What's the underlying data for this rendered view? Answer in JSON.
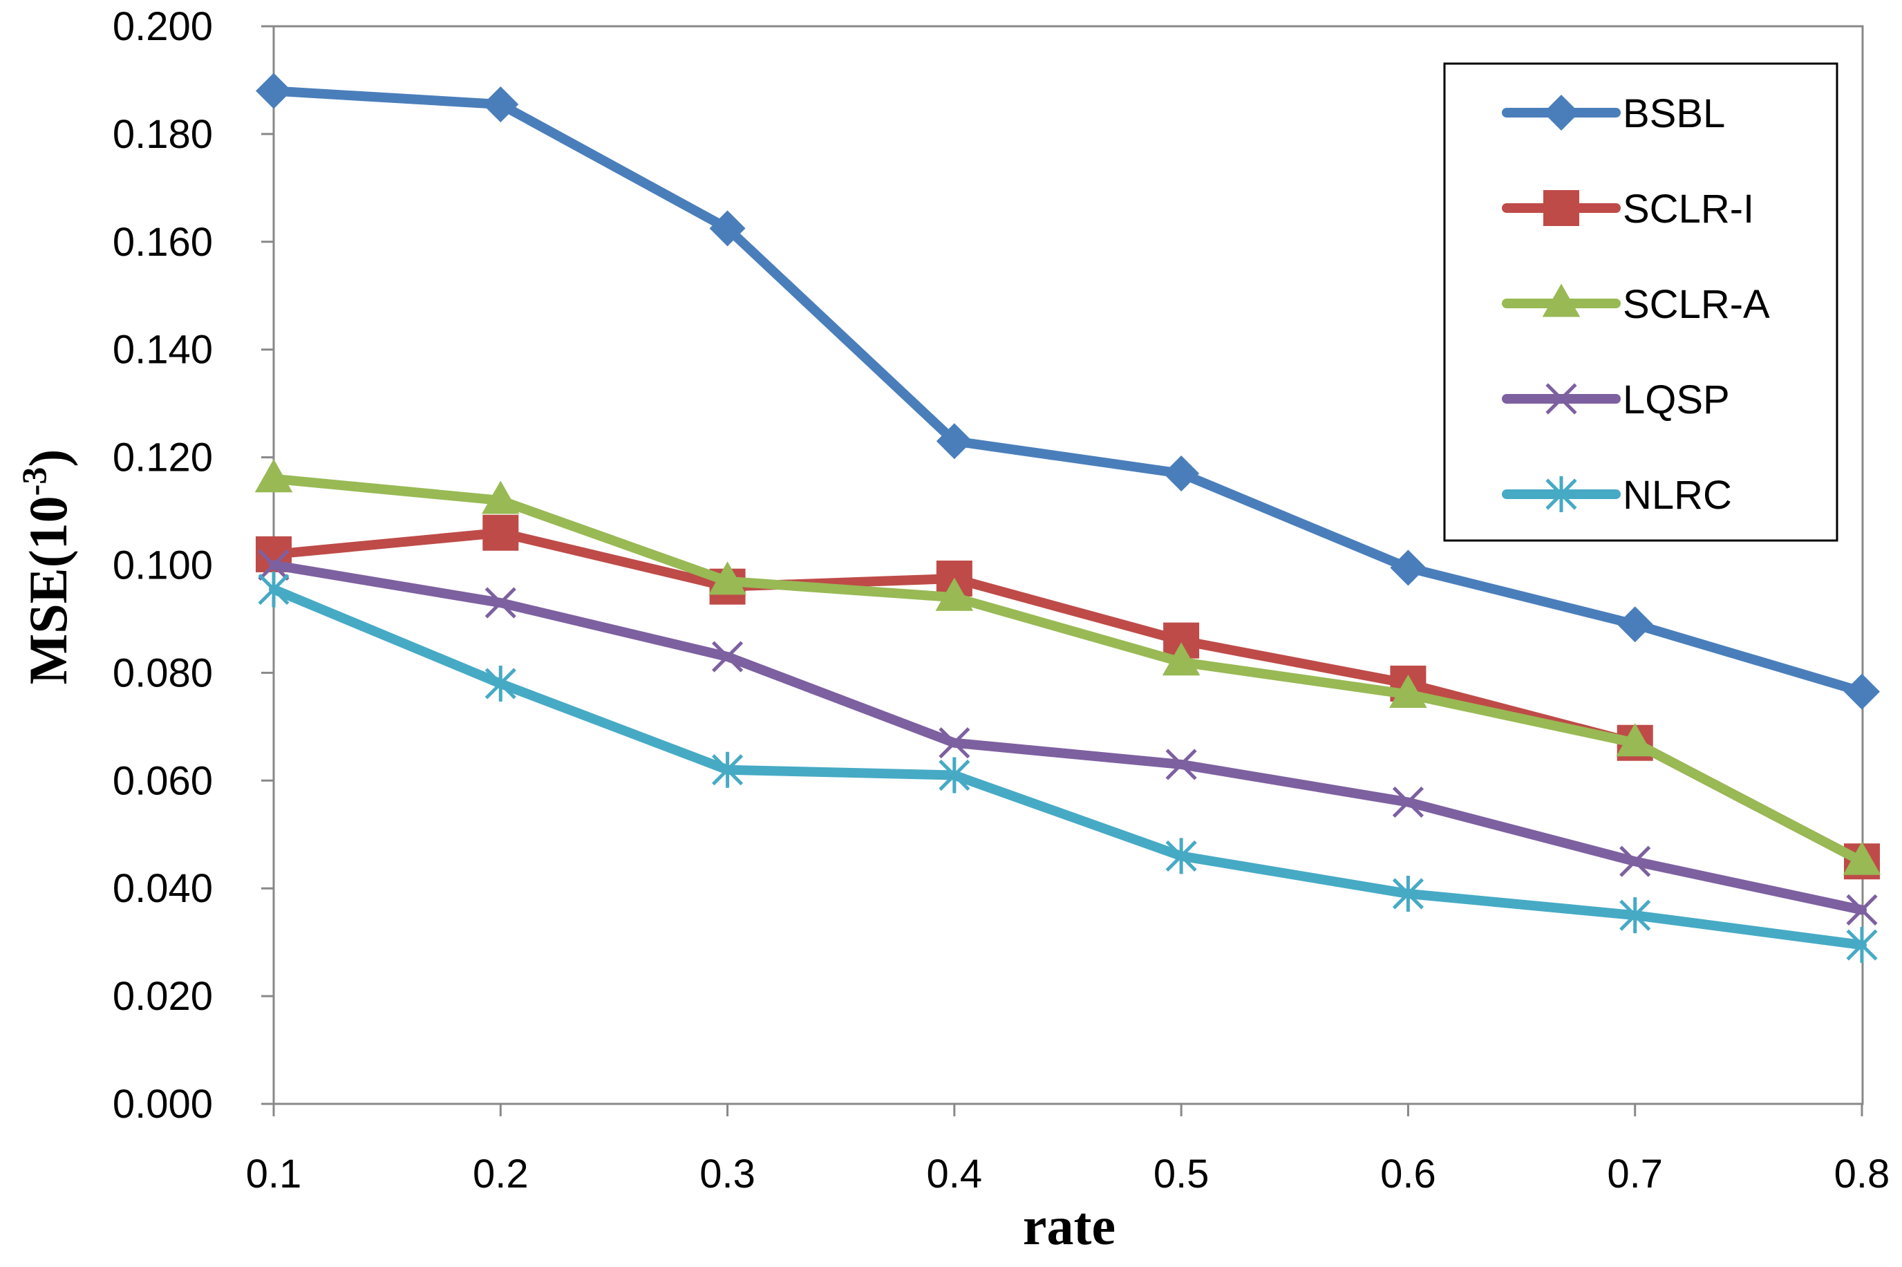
{
  "chart_data": {
    "type": "line",
    "title": "",
    "xlabel": "rate",
    "ylabel": "MSE(10",
    "ylabel_superscript": "-3",
    "ylabel_close": ")",
    "categories": [
      "0.1",
      "0.2",
      "0.3",
      "0.4",
      "0.5",
      "0.6",
      "0.7",
      "0.8"
    ],
    "ylim": [
      0,
      0.2
    ],
    "yticks": [
      "0.000",
      "0.020",
      "0.040",
      "0.060",
      "0.080",
      "0.100",
      "0.120",
      "0.140",
      "0.160",
      "0.180",
      "0.200"
    ],
    "grid": false,
    "legend_position": "top-right",
    "series": [
      {
        "name": "BSBL",
        "color": "#4A7EBB",
        "marker": "diamond",
        "values": [
          0.188,
          0.1855,
          0.1625,
          0.123,
          0.117,
          0.0995,
          0.089,
          0.0765
        ]
      },
      {
        "name": "SCLR-I",
        "color": "#BE4B48",
        "marker": "square",
        "values": [
          0.102,
          0.106,
          0.096,
          0.0975,
          0.086,
          0.078,
          0.067,
          0.045
        ]
      },
      {
        "name": "SCLR-A",
        "color": "#98B954",
        "marker": "triangle",
        "values": [
          0.116,
          0.112,
          0.097,
          0.094,
          0.082,
          0.076,
          0.067,
          0.045
        ]
      },
      {
        "name": "LQSP",
        "color": "#7D60A0",
        "marker": "x",
        "values": [
          0.1,
          0.093,
          0.083,
          0.067,
          0.063,
          0.056,
          0.045,
          0.036
        ]
      },
      {
        "name": "NLRC",
        "color": "#46AAC5",
        "marker": "star",
        "values": [
          0.0955,
          0.078,
          0.062,
          0.061,
          0.046,
          0.039,
          0.035,
          0.0295
        ]
      }
    ]
  }
}
